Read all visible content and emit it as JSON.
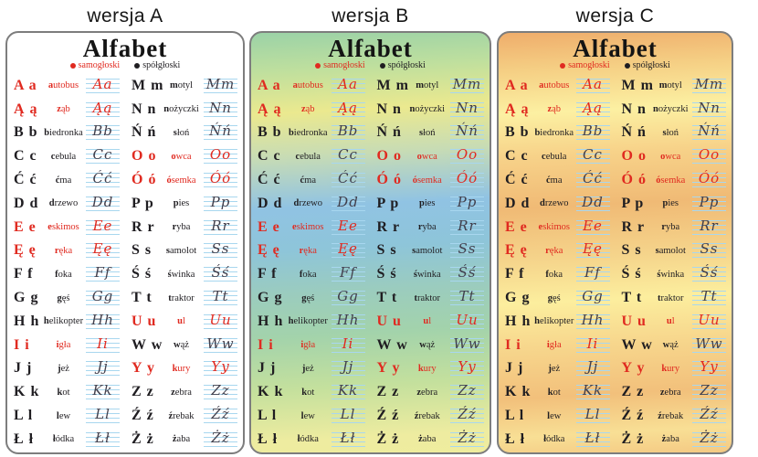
{
  "versions": [
    {
      "label": "wersja A"
    },
    {
      "label": "wersja B"
    },
    {
      "label": "wersja C"
    }
  ],
  "alphabet": {
    "title": "Alfabet",
    "legend": [
      {
        "label": "samogłoski",
        "type": "vowel"
      },
      {
        "label": "spółgłoski",
        "type": "consonant"
      }
    ],
    "columns": {
      "left": [
        {
          "letters": "A a",
          "word": "autobus",
          "cursive": "Aa",
          "vowel": true
        },
        {
          "letters": "Ą ą",
          "word": "ząb",
          "cursive": "Ąą",
          "vowel": true
        },
        {
          "letters": "B b",
          "word": "biedronka",
          "cursive": "Bb",
          "vowel": false
        },
        {
          "letters": "C c",
          "word": "cebula",
          "cursive": "Cc",
          "vowel": false
        },
        {
          "letters": "Ć ć",
          "word": "ćma",
          "cursive": "Ćć",
          "vowel": false
        },
        {
          "letters": "D d",
          "word": "drzewo",
          "cursive": "Dd",
          "vowel": false
        },
        {
          "letters": "E e",
          "word": "eskimos",
          "cursive": "Ee",
          "vowel": true
        },
        {
          "letters": "Ę ę",
          "word": "ręka",
          "cursive": "Ęę",
          "vowel": true
        },
        {
          "letters": "F f",
          "word": "foka",
          "cursive": "Ff",
          "vowel": false
        },
        {
          "letters": "G g",
          "word": "gęś",
          "cursive": "Gg",
          "vowel": false
        },
        {
          "letters": "H h",
          "word": "helikopter",
          "cursive": "Hh",
          "vowel": false
        },
        {
          "letters": "I i",
          "word": "igła",
          "cursive": "Ii",
          "vowel": true
        },
        {
          "letters": "J j",
          "word": "jeż",
          "cursive": "Jj",
          "vowel": false
        },
        {
          "letters": "K k",
          "word": "kot",
          "cursive": "Kk",
          "vowel": false
        },
        {
          "letters": "L l",
          "word": "lew",
          "cursive": "Ll",
          "vowel": false
        },
        {
          "letters": "Ł ł",
          "word": "łódka",
          "cursive": "Łł",
          "vowel": false
        }
      ],
      "right": [
        {
          "letters": "M m",
          "word": "motyl",
          "cursive": "Mm",
          "vowel": false
        },
        {
          "letters": "N n",
          "word": "nożyczki",
          "cursive": "Nn",
          "vowel": false
        },
        {
          "letters": "Ń ń",
          "word": "słoń",
          "cursive": "Ńń",
          "vowel": false
        },
        {
          "letters": "O o",
          "word": "owca",
          "cursive": "Oo",
          "vowel": true
        },
        {
          "letters": "Ó ó",
          "word": "ósemka",
          "cursive": "Óó",
          "vowel": true
        },
        {
          "letters": "P p",
          "word": "pies",
          "cursive": "Pp",
          "vowel": false
        },
        {
          "letters": "R r",
          "word": "ryba",
          "cursive": "Rr",
          "vowel": false
        },
        {
          "letters": "S s",
          "word": "samolot",
          "cursive": "Ss",
          "vowel": false
        },
        {
          "letters": "Ś ś",
          "word": "świnka",
          "cursive": "Śś",
          "vowel": false
        },
        {
          "letters": "T t",
          "word": "traktor",
          "cursive": "Tt",
          "vowel": false
        },
        {
          "letters": "U u",
          "word": "ul",
          "cursive": "Uu",
          "vowel": true
        },
        {
          "letters": "W w",
          "word": "wąż",
          "cursive": "Ww",
          "vowel": false
        },
        {
          "letters": "Y y",
          "word": "kury",
          "cursive": "Yy",
          "vowel": true
        },
        {
          "letters": "Z z",
          "word": "zebra",
          "cursive": "Zz",
          "vowel": false
        },
        {
          "letters": "Ź ź",
          "word": "źrebak",
          "cursive": "Źź",
          "vowel": false
        },
        {
          "letters": "Ż ż",
          "word": "żaba",
          "cursive": "Żż",
          "vowel": false
        }
      ]
    }
  },
  "colors": {
    "vowel_red": "#e02a20",
    "consonant_black": "#1f1d21",
    "cursive_dark": "#413f4c",
    "ruled_line_blue": "#a8d7ef",
    "panel_border": "#7d7d7d"
  }
}
